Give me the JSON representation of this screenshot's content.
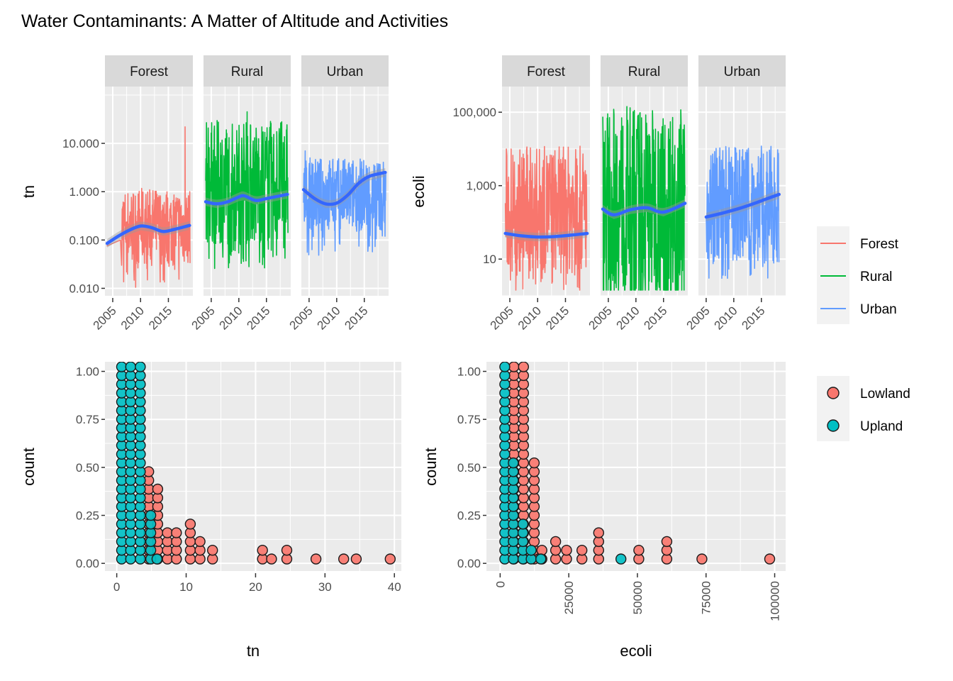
{
  "title": "Water Contaminants: A Matter of Altitude and Activities",
  "colors": {
    "Forest": "#F8766D",
    "Rural": "#00BA38",
    "Urban": "#619CFF",
    "smooth": "#3366FF",
    "Lowland": "#F8766D",
    "Upland": "#00BFC4",
    "panel_bg": "#EBEBEB",
    "strip_bg": "#D9D9D9",
    "grid": "#FFFFFF",
    "text": "#4D4D4D"
  },
  "legends": [
    {
      "type": "line",
      "items": [
        "Forest",
        "Rural",
        "Urban"
      ]
    },
    {
      "type": "point",
      "items": [
        "Lowland",
        "Upland"
      ]
    }
  ],
  "chart_data": [
    {
      "id": "tn-timeseries",
      "type": "line",
      "facet_by": "land use",
      "facets": [
        "Forest",
        "Rural",
        "Urban"
      ],
      "ylabel": "tn",
      "xlabel": "",
      "yscale": "log10",
      "ylim": [
        0.007,
        150
      ],
      "yticks": [
        0.01,
        0.1,
        1,
        10
      ],
      "ytick_labels": [
        "0.010",
        "0.100",
        "1.000",
        "10.000"
      ],
      "xlim": [
        2003.6,
        2019.4
      ],
      "xticks": [
        2005,
        2010,
        2015
      ],
      "xtick_labels": [
        "2005",
        "2010",
        "2015"
      ],
      "grid": true,
      "series": [
        {
          "name": "Forest",
          "raw_range": {
            "start": 2003.9,
            "end": 2018.9,
            "dense_start": 2006.6
          },
          "raw_envelope": {
            "low": 0.03,
            "high": 1.2,
            "peak_year": 2018.0,
            "peak_value": 22
          },
          "smooth": {
            "x": [
              2004,
              2006,
              2008,
              2010,
              2012,
              2014,
              2016,
              2018.8
            ],
            "y": [
              0.085,
              0.12,
              0.16,
              0.195,
              0.18,
              0.15,
              0.165,
              0.2
            ]
          }
        },
        {
          "name": "Rural",
          "raw_range": {
            "start": 2004.0,
            "end": 2018.9,
            "dense_start": 2004.0
          },
          "raw_envelope": {
            "low": 0.08,
            "high": 30,
            "peak_year": 2011.5,
            "peak_value": 45
          },
          "smooth": {
            "x": [
              2004,
              2006,
              2008,
              2010,
              2011,
              2013,
              2015,
              2018.8
            ],
            "y": [
              0.62,
              0.56,
              0.62,
              0.78,
              0.82,
              0.66,
              0.72,
              0.88
            ]
          }
        },
        {
          "name": "Urban",
          "raw_range": {
            "start": 2004.0,
            "end": 2018.9,
            "dense_start": 2004.0
          },
          "raw_envelope": {
            "low": 0.15,
            "high": 5,
            "peak_year": 2004.3,
            "peak_value": 7
          },
          "smooth": {
            "x": [
              2004,
              2006,
              2008,
              2010,
              2012,
              2014,
              2016,
              2018.8
            ],
            "y": [
              1.1,
              0.72,
              0.56,
              0.58,
              0.85,
              1.5,
              2.1,
              2.5
            ]
          }
        }
      ]
    },
    {
      "id": "ecoli-timeseries",
      "type": "line",
      "facet_by": "land use",
      "facets": [
        "Forest",
        "Rural",
        "Urban"
      ],
      "ylabel": "ecoli",
      "xlabel": "",
      "yscale": "log10",
      "ylim": [
        1,
        500000
      ],
      "yticks": [
        10,
        1000,
        100000
      ],
      "ytick_labels": [
        "10",
        "1,000",
        "100,000"
      ],
      "xlim": [
        2003.6,
        2019.4
      ],
      "xticks": [
        2005,
        2010,
        2015
      ],
      "xtick_labels": [
        "2005",
        "2010",
        "2015"
      ],
      "grid": true,
      "series": [
        {
          "name": "Forest",
          "raw_range": {
            "start": 2004.2,
            "end": 2018.9
          },
          "raw_envelope": {
            "low": 4,
            "high": 12000,
            "floor": 1
          },
          "smooth": {
            "x": [
              2004.2,
              2007,
              2010,
              2013,
              2016,
              2018.9
            ],
            "y": [
              50,
              43,
              40,
              41,
              45,
              50
            ]
          }
        },
        {
          "name": "Rural",
          "raw_range": {
            "start": 2004.0,
            "end": 2018.9
          },
          "raw_envelope": {
            "low": 1,
            "high": 150000,
            "floor": 1
          },
          "smooth": {
            "x": [
              2004,
              2006,
              2009,
              2012,
              2015,
              2018.9
            ],
            "y": [
              230,
              160,
              220,
              250,
              190,
              330
            ]
          }
        },
        {
          "name": "Urban",
          "raw_range": {
            "start": 2005.0,
            "end": 2018.2
          },
          "raw_envelope": {
            "low": 8,
            "high": 12000,
            "floor": 3
          },
          "smooth": {
            "x": [
              2005,
              2008,
              2011,
              2014,
              2016,
              2018.2
            ],
            "y": [
              140,
              180,
              240,
              340,
              440,
              580
            ]
          }
        }
      ]
    },
    {
      "id": "tn-dotplot",
      "type": "scatter",
      "subtype": "dotplot",
      "xlabel": "tn",
      "ylabel": "count",
      "xlim": [
        -1.7,
        41
      ],
      "ylim": [
        -0.04,
        1.05
      ],
      "xticks": [
        0,
        10,
        20,
        30,
        40
      ],
      "yticks": [
        0,
        0.25,
        0.5,
        0.75,
        1.0
      ],
      "ytick_labels": [
        "0.00",
        "0.25",
        "0.50",
        "0.75",
        "1.00"
      ],
      "dot_step": 0.0455,
      "grid": true,
      "series": [
        {
          "name": "Upland",
          "bins": [
            {
              "x": 0.7,
              "count": 23
            },
            {
              "x": 2.0,
              "count": 23
            },
            {
              "x": 3.4,
              "count": 23
            },
            {
              "x": 4.9,
              "count": 6
            },
            {
              "x": 5.8,
              "count": 1
            }
          ]
        },
        {
          "name": "Lowland",
          "bins": [
            {
              "x": 4.6,
              "count": 11
            },
            {
              "x": 5.9,
              "count": 9
            },
            {
              "x": 7.3,
              "count": 4
            },
            {
              "x": 8.6,
              "count": 4
            },
            {
              "x": 10.6,
              "count": 5
            },
            {
              "x": 12.0,
              "count": 3
            },
            {
              "x": 13.8,
              "count": 2
            },
            {
              "x": 21.0,
              "count": 2
            },
            {
              "x": 22.3,
              "count": 1
            },
            {
              "x": 24.5,
              "count": 2
            },
            {
              "x": 28.7,
              "count": 1
            },
            {
              "x": 32.7,
              "count": 1
            },
            {
              "x": 34.5,
              "count": 1
            },
            {
              "x": 39.4,
              "count": 1
            }
          ]
        }
      ]
    },
    {
      "id": "ecoli-dotplot",
      "type": "scatter",
      "subtype": "dotplot",
      "xlabel": "ecoli",
      "ylabel": "count",
      "xlim": [
        -5000,
        104000
      ],
      "ylim": [
        -0.04,
        1.05
      ],
      "xticks": [
        0,
        25000,
        50000,
        75000,
        100000
      ],
      "xtick_labels": [
        "0",
        "25000",
        "50000",
        "75000",
        "100000"
      ],
      "yticks": [
        0,
        0.25,
        0.5,
        0.75,
        1.0
      ],
      "ytick_labels": [
        "0.00",
        "0.25",
        "0.50",
        "0.75",
        "1.00"
      ],
      "dot_step": 0.0455,
      "grid": true,
      "series": [
        {
          "name": "Upland",
          "bins": [
            {
              "x": 1700,
              "count": 23
            },
            {
              "x": 4800,
              "count": 12
            },
            {
              "x": 8300,
              "count": 5
            },
            {
              "x": 11300,
              "count": 2
            },
            {
              "x": 14800,
              "count": 1
            },
            {
              "x": 44000,
              "count": 1
            }
          ]
        },
        {
          "name": "Lowland",
          "bins": [
            {
              "x": 5000,
              "count": 23
            },
            {
              "x": 8500,
              "count": 23
            },
            {
              "x": 12400,
              "count": 12
            },
            {
              "x": 15200,
              "count": 2
            },
            {
              "x": 20200,
              "count": 3
            },
            {
              "x": 24200,
              "count": 2
            },
            {
              "x": 29800,
              "count": 2
            },
            {
              "x": 35900,
              "count": 4
            },
            {
              "x": 50500,
              "count": 2
            },
            {
              "x": 60700,
              "count": 3
            },
            {
              "x": 73500,
              "count": 1
            },
            {
              "x": 98200,
              "count": 1
            }
          ]
        }
      ]
    }
  ]
}
